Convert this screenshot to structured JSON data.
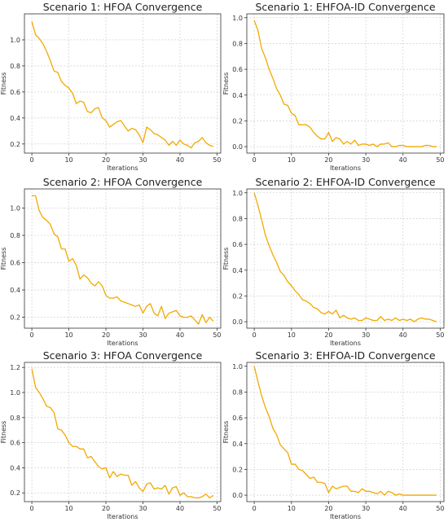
{
  "line_color": "#f2a900",
  "chart_data": [
    {
      "type": "line",
      "title": "Scenario 1: HFOA Convergence",
      "xlabel": "Iterations",
      "ylabel": "Fitness",
      "xlim": [
        -2,
        51
      ],
      "ylim": [
        0.13,
        1.2
      ],
      "xticks": [
        0,
        10,
        20,
        30,
        40,
        50
      ],
      "yticks": [
        0.2,
        0.4,
        0.6,
        0.8,
        1.0
      ],
      "ydec": 1,
      "grid": true,
      "x": [
        0,
        1,
        2,
        3,
        4,
        5,
        6,
        7,
        8,
        9,
        10,
        11,
        12,
        13,
        14,
        15,
        16,
        17,
        18,
        19,
        20,
        21,
        22,
        23,
        24,
        25,
        26,
        27,
        28,
        29,
        30,
        31,
        32,
        33,
        34,
        35,
        36,
        37,
        38,
        39,
        40,
        41,
        42,
        43,
        44,
        45,
        46,
        47,
        48,
        49
      ],
      "series": [
        {
          "values": [
            1.14,
            1.04,
            1.01,
            0.97,
            0.91,
            0.84,
            0.76,
            0.75,
            0.68,
            0.65,
            0.63,
            0.59,
            0.51,
            0.53,
            0.52,
            0.45,
            0.44,
            0.47,
            0.48,
            0.4,
            0.38,
            0.33,
            0.35,
            0.37,
            0.38,
            0.34,
            0.3,
            0.32,
            0.31,
            0.27,
            0.21,
            0.33,
            0.31,
            0.28,
            0.27,
            0.25,
            0.23,
            0.19,
            0.22,
            0.19,
            0.23,
            0.2,
            0.19,
            0.17,
            0.21,
            0.22,
            0.25,
            0.21,
            0.19,
            0.18
          ]
        }
      ]
    },
    {
      "type": "line",
      "title": "Scenario 1: EHFOA-ID Convergence",
      "xlabel": "Iterations",
      "ylabel": "Fitness",
      "xlim": [
        -2,
        51
      ],
      "ylim": [
        -0.05,
        1.03
      ],
      "xticks": [
        0,
        10,
        20,
        30,
        40,
        50
      ],
      "yticks": [
        0.0,
        0.2,
        0.4,
        0.6,
        0.8,
        1.0
      ],
      "ydec": 1,
      "grid": true,
      "x": [
        0,
        1,
        2,
        3,
        4,
        5,
        6,
        7,
        8,
        9,
        10,
        11,
        12,
        13,
        14,
        15,
        16,
        17,
        18,
        19,
        20,
        21,
        22,
        23,
        24,
        25,
        26,
        27,
        28,
        29,
        30,
        31,
        32,
        33,
        34,
        35,
        36,
        37,
        38,
        39,
        40,
        41,
        42,
        43,
        44,
        45,
        46,
        47,
        48,
        49
      ],
      "series": [
        {
          "values": [
            0.98,
            0.9,
            0.76,
            0.69,
            0.6,
            0.53,
            0.45,
            0.4,
            0.33,
            0.32,
            0.26,
            0.24,
            0.17,
            0.17,
            0.17,
            0.15,
            0.11,
            0.08,
            0.06,
            0.06,
            0.11,
            0.04,
            0.07,
            0.06,
            0.02,
            0.04,
            0.02,
            0.05,
            0.01,
            0.02,
            0.02,
            0.01,
            0.02,
            0.0,
            0.02,
            0.02,
            0.03,
            0.0,
            0.0,
            0.01,
            0.01,
            0.0,
            0.0,
            0.0,
            0.0,
            0.0,
            0.01,
            0.01,
            0.0,
            0.0
          ]
        }
      ]
    },
    {
      "type": "line",
      "title": "Scenario 2: HFOA Convergence",
      "xlabel": "Iterations",
      "ylabel": "Fitness",
      "xlim": [
        -2,
        51
      ],
      "ylim": [
        0.12,
        1.14
      ],
      "xticks": [
        0,
        10,
        20,
        30,
        40,
        50
      ],
      "yticks": [
        0.2,
        0.4,
        0.6,
        0.8,
        1.0
      ],
      "ydec": 1,
      "grid": true,
      "x": [
        0,
        1,
        2,
        3,
        4,
        5,
        6,
        7,
        8,
        9,
        10,
        11,
        12,
        13,
        14,
        15,
        16,
        17,
        18,
        19,
        20,
        21,
        22,
        23,
        24,
        25,
        26,
        27,
        28,
        29,
        30,
        31,
        32,
        33,
        34,
        35,
        36,
        37,
        38,
        39,
        40,
        41,
        42,
        43,
        44,
        45,
        46,
        47,
        48,
        49
      ],
      "series": [
        {
          "values": [
            1.09,
            1.09,
            0.98,
            0.93,
            0.91,
            0.88,
            0.81,
            0.79,
            0.7,
            0.7,
            0.61,
            0.63,
            0.58,
            0.48,
            0.51,
            0.49,
            0.45,
            0.43,
            0.46,
            0.43,
            0.36,
            0.34,
            0.34,
            0.35,
            0.32,
            0.31,
            0.3,
            0.29,
            0.28,
            0.29,
            0.23,
            0.28,
            0.3,
            0.23,
            0.21,
            0.28,
            0.19,
            0.23,
            0.24,
            0.25,
            0.21,
            0.2,
            0.2,
            0.21,
            0.18,
            0.15,
            0.22,
            0.16,
            0.2,
            0.17
          ]
        }
      ]
    },
    {
      "type": "line",
      "title": "Scenario 2: EHFOA-ID Convergence",
      "xlabel": "Iterations",
      "ylabel": "Fitness",
      "xlim": [
        -2,
        51
      ],
      "ylim": [
        -0.05,
        1.03
      ],
      "xticks": [
        0,
        10,
        20,
        30,
        40,
        50
      ],
      "yticks": [
        0.0,
        0.2,
        0.4,
        0.6,
        0.8,
        1.0
      ],
      "ydec": 1,
      "grid": true,
      "x": [
        0,
        1,
        2,
        3,
        4,
        5,
        6,
        7,
        8,
        9,
        10,
        11,
        12,
        13,
        14,
        15,
        16,
        17,
        18,
        19,
        20,
        21,
        22,
        23,
        24,
        25,
        26,
        27,
        28,
        29,
        30,
        31,
        32,
        33,
        34,
        35,
        36,
        37,
        38,
        39,
        40,
        41,
        42,
        43,
        44,
        45,
        46,
        47,
        48,
        49
      ],
      "series": [
        {
          "values": [
            1.0,
            0.9,
            0.79,
            0.67,
            0.59,
            0.52,
            0.46,
            0.39,
            0.36,
            0.31,
            0.28,
            0.24,
            0.21,
            0.17,
            0.16,
            0.14,
            0.11,
            0.1,
            0.07,
            0.06,
            0.08,
            0.06,
            0.09,
            0.03,
            0.05,
            0.03,
            0.02,
            0.03,
            0.01,
            0.01,
            0.03,
            0.02,
            0.01,
            0.01,
            0.04,
            0.01,
            0.02,
            0.01,
            0.03,
            0.01,
            0.02,
            0.01,
            0.02,
            0.0,
            0.02,
            0.03,
            0.02,
            0.02,
            0.01,
            0.0
          ]
        }
      ]
    },
    {
      "type": "line",
      "title": "Scenario 3: HFOA Convergence",
      "xlabel": "Iterations",
      "ylabel": "Fitness",
      "xlim": [
        -2,
        51
      ],
      "ylim": [
        0.13,
        1.24
      ],
      "xticks": [
        0,
        10,
        20,
        30,
        40,
        50
      ],
      "yticks": [
        0.2,
        0.4,
        0.6,
        0.8,
        1.0,
        1.2
      ],
      "ydec": 1,
      "grid": true,
      "x": [
        0,
        1,
        2,
        3,
        4,
        5,
        6,
        7,
        8,
        9,
        10,
        11,
        12,
        13,
        14,
        15,
        16,
        17,
        18,
        19,
        20,
        21,
        22,
        23,
        24,
        25,
        26,
        27,
        28,
        29,
        30,
        31,
        32,
        33,
        34,
        35,
        36,
        37,
        38,
        39,
        40,
        41,
        42,
        43,
        44,
        45,
        46,
        47,
        48,
        49
      ],
      "series": [
        {
          "values": [
            1.19,
            1.04,
            1.0,
            0.95,
            0.89,
            0.88,
            0.84,
            0.71,
            0.7,
            0.66,
            0.6,
            0.57,
            0.57,
            0.55,
            0.55,
            0.48,
            0.49,
            0.45,
            0.41,
            0.39,
            0.4,
            0.32,
            0.37,
            0.33,
            0.35,
            0.34,
            0.34,
            0.26,
            0.29,
            0.24,
            0.21,
            0.27,
            0.28,
            0.23,
            0.24,
            0.23,
            0.26,
            0.19,
            0.24,
            0.25,
            0.18,
            0.2,
            0.17,
            0.17,
            0.16,
            0.16,
            0.17,
            0.19,
            0.16,
            0.18
          ]
        }
      ]
    },
    {
      "type": "line",
      "title": "Scenario 3: EHFOA-ID Convergence",
      "xlabel": "Iterations",
      "ylabel": "Fitness",
      "xlim": [
        -2,
        51
      ],
      "ylim": [
        -0.05,
        1.03
      ],
      "xticks": [
        0,
        10,
        20,
        30,
        40,
        50
      ],
      "yticks": [
        0.0,
        0.2,
        0.4,
        0.6,
        0.8,
        1.0
      ],
      "ydec": 1,
      "grid": true,
      "x": [
        0,
        1,
        2,
        3,
        4,
        5,
        6,
        7,
        8,
        9,
        10,
        11,
        12,
        13,
        14,
        15,
        16,
        17,
        18,
        19,
        20,
        21,
        22,
        23,
        24,
        25,
        26,
        27,
        28,
        29,
        30,
        31,
        32,
        33,
        34,
        35,
        36,
        37,
        38,
        39,
        40,
        41,
        42,
        43,
        44,
        45,
        46,
        47,
        48,
        49
      ],
      "series": [
        {
          "values": [
            1.0,
            0.88,
            0.77,
            0.68,
            0.61,
            0.52,
            0.47,
            0.39,
            0.36,
            0.33,
            0.24,
            0.24,
            0.2,
            0.19,
            0.16,
            0.13,
            0.14,
            0.1,
            0.1,
            0.09,
            0.02,
            0.07,
            0.05,
            0.06,
            0.07,
            0.07,
            0.03,
            0.03,
            0.02,
            0.05,
            0.03,
            0.03,
            0.02,
            0.01,
            0.03,
            0.0,
            0.03,
            0.02,
            0.0,
            0.01,
            0.0,
            0.0,
            0.0,
            0.0,
            0.0,
            0.0,
            0.0,
            0.0,
            0.0,
            0.0
          ]
        }
      ]
    }
  ]
}
